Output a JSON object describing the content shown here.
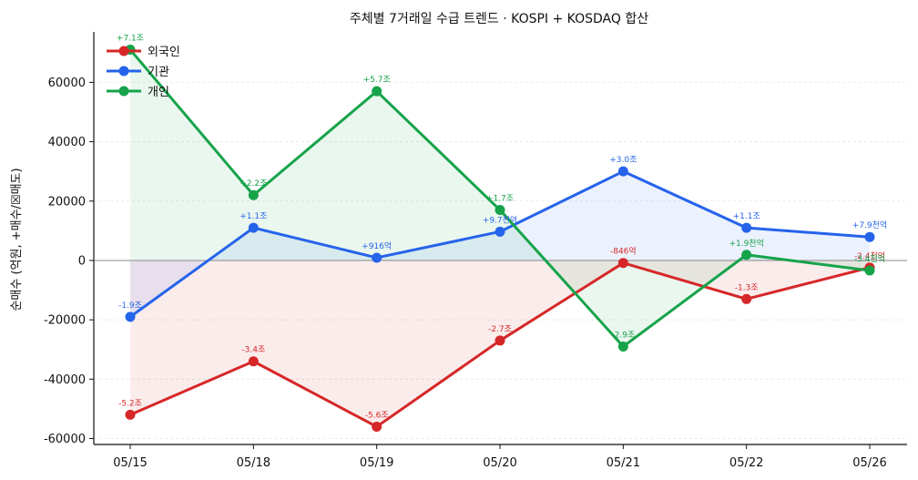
{
  "chart_data": {
    "type": "line",
    "title": "주체별 7거래일 수급 트렌드 · KOSPI + KOSDAQ 합산",
    "xlabel": "",
    "ylabel": "순매수 (억원, +매수/☒매도)",
    "categories": [
      "05/15",
      "05/18",
      "05/19",
      "05/20",
      "05/21",
      "05/22",
      "05/26"
    ],
    "ylim": [
      -62000,
      77000
    ],
    "yticks": [
      -60000,
      -40000,
      -20000,
      0,
      20000,
      40000,
      60000
    ],
    "grid": "horizontal",
    "legend": "top-left",
    "series": [
      {
        "name": "외국인",
        "color": "#d62728",
        "values": [
          -52000,
          -34000,
          -56000,
          -27000,
          -846,
          -13000,
          -2400
        ],
        "labels": [
          "-5.2조",
          "-3.4조",
          "-5.6조",
          "-2.7조",
          "-846억",
          "-1.3조",
          "-2.4천억"
        ]
      },
      {
        "name": "기관",
        "color": "#2563eb",
        "values": [
          -19000,
          11000,
          916,
          9700,
          30000,
          11000,
          7900
        ],
        "labels": [
          "-1.9조",
          "+1.1조",
          "+916억",
          "+9.7천억",
          "+3.0조",
          "+1.1조",
          "+7.9천억"
        ]
      },
      {
        "name": "개인",
        "color": "#16a34a",
        "values": [
          71000,
          22000,
          57000,
          17000,
          -29000,
          1900,
          -3400
        ],
        "labels": [
          "+7.1조",
          "+2.2조",
          "+5.7조",
          "+1.7조",
          "-2.9조",
          "+1.9천억",
          "-3.4천억"
        ]
      }
    ]
  }
}
